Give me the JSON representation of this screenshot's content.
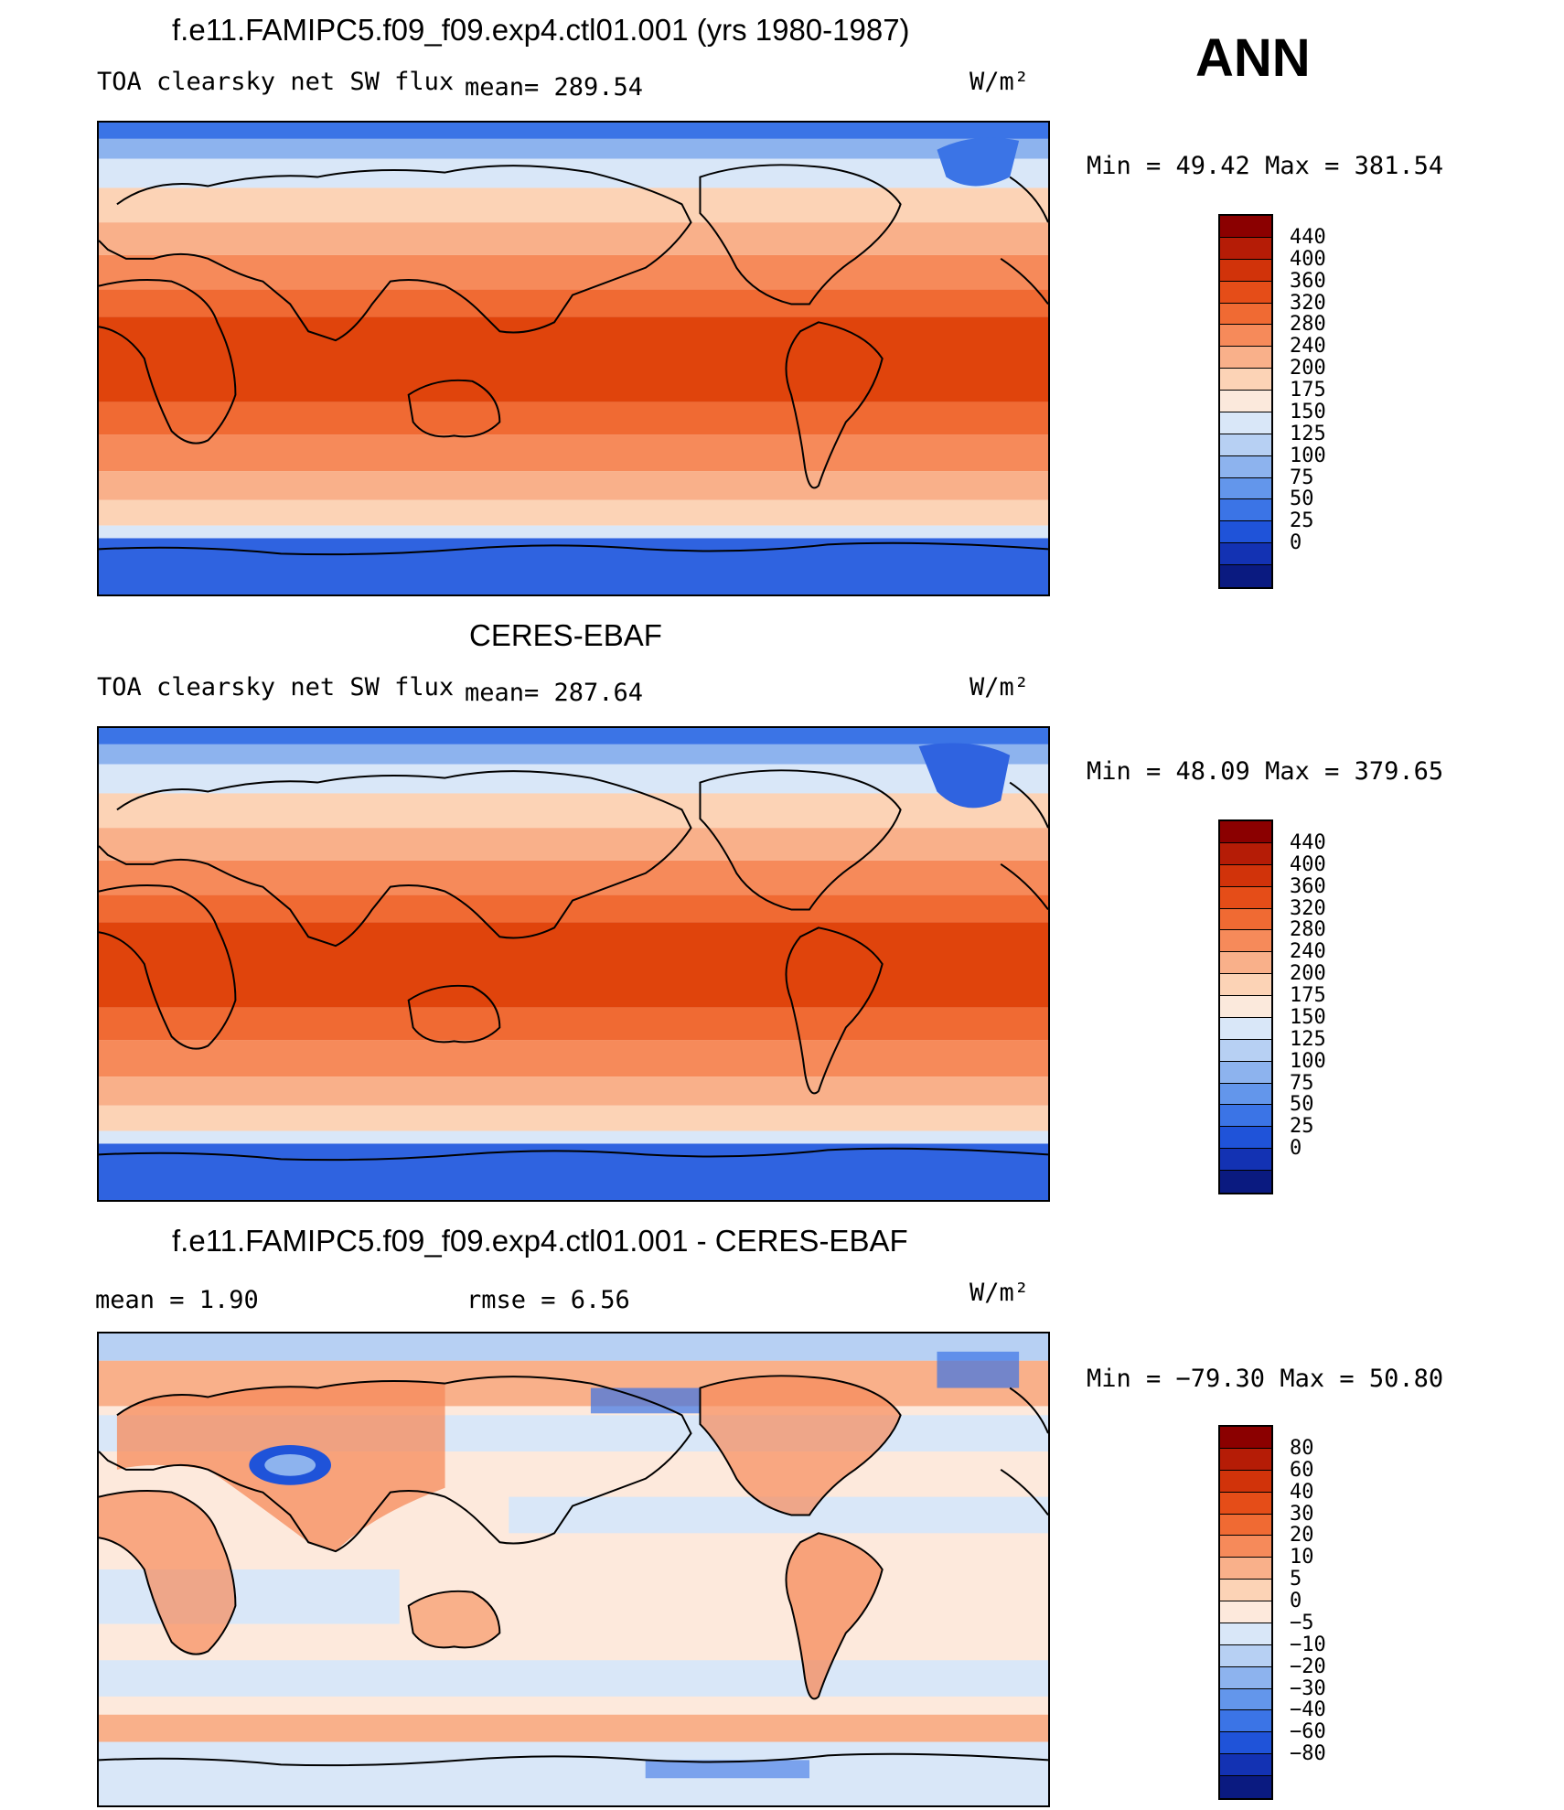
{
  "season": "ANN",
  "panels": [
    {
      "title": "f.e11.FAMIPC5.f09_f09.exp4.ctl01.001 (yrs 1980-1987)",
      "left_label": "TOA clearsky net SW flux",
      "mean_text": "mean= 289.54",
      "units": "W/m²",
      "minmax": "Min =   49.42 Max = 381.54",
      "colorbar_labels": [
        "440",
        "400",
        "360",
        "320",
        "280",
        "240",
        "200",
        "175",
        "150",
        "125",
        "100",
        "75",
        "50",
        "25",
        "0"
      ],
      "colorbar_colors": [
        "#8b0000",
        "#b51c06",
        "#d1330a",
        "#e54d18",
        "#f06a33",
        "#f68a5a",
        "#f9b08a",
        "#fcd3b6",
        "#fbe9dc",
        "#d9e7f8",
        "#b7d0f3",
        "#8db3ee",
        "#6396eb",
        "#3b74e6",
        "#1f53d9",
        "#1332b3",
        "#0a1a80"
      ]
    },
    {
      "title": "CERES-EBAF",
      "left_label": "TOA clearsky net SW flux",
      "mean_text": "mean= 287.64",
      "units": "W/m²",
      "minmax": "Min =   48.09 Max = 379.65",
      "colorbar_labels": [
        "440",
        "400",
        "360",
        "320",
        "280",
        "240",
        "200",
        "175",
        "150",
        "125",
        "100",
        "75",
        "50",
        "25",
        "0"
      ],
      "colorbar_colors": [
        "#8b0000",
        "#b51c06",
        "#d1330a",
        "#e54d18",
        "#f06a33",
        "#f68a5a",
        "#f9b08a",
        "#fcd3b6",
        "#fbe9dc",
        "#d9e7f8",
        "#b7d0f3",
        "#8db3ee",
        "#6396eb",
        "#3b74e6",
        "#1f53d9",
        "#1332b3",
        "#0a1a80"
      ]
    },
    {
      "title": "f.e11.FAMIPC5.f09_f09.exp4.ctl01.001 - CERES-EBAF",
      "mean_text": "mean =    1.90",
      "rmse_text": "rmse =    6.56",
      "units": "W/m²",
      "minmax": "Min = −79.30 Max =   50.80",
      "colorbar_labels": [
        "80",
        "60",
        "40",
        "30",
        "20",
        "10",
        "5",
        "0",
        "−5",
        "−10",
        "−20",
        "−30",
        "−40",
        "−60",
        "−80"
      ],
      "colorbar_colors": [
        "#8b0000",
        "#b51c06",
        "#d1330a",
        "#e54d18",
        "#f06a33",
        "#f68a5a",
        "#f9b08a",
        "#fcd3b6",
        "#fde9dc",
        "#d9e7f8",
        "#b7d0f3",
        "#8db3ee",
        "#6396eb",
        "#3b74e6",
        "#1f53d9",
        "#1332b3",
        "#0a1a80"
      ]
    }
  ]
}
